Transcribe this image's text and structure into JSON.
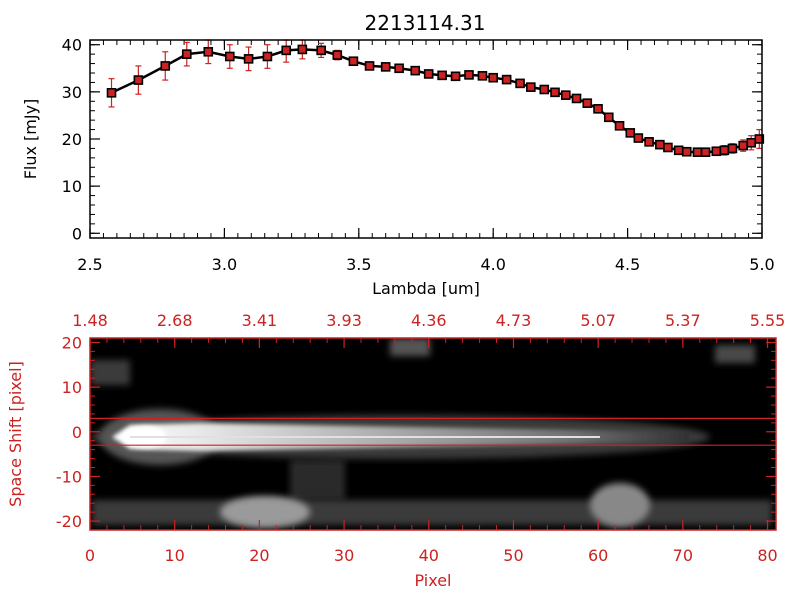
{
  "chart_data": [
    {
      "type": "line",
      "title": "2213114.31",
      "xlabel": "Lambda [um]",
      "ylabel": "Flux [mJy]",
      "xlim": [
        2.5,
        5.0
      ],
      "ylim": [
        -1,
        41
      ],
      "xticks": [
        "2.5",
        "3.0",
        "3.5",
        "4.0",
        "4.5",
        "5.0"
      ],
      "xtick_values": [
        2.5,
        3.0,
        3.5,
        4.0,
        4.5,
        5.0
      ],
      "yticks": [
        "0",
        "10",
        "20",
        "30",
        "40"
      ],
      "ytick_values": [
        0,
        10,
        20,
        30,
        40
      ],
      "grid": false,
      "line_color": "#000000",
      "marker_color": "#cc2222",
      "error_color": "#cc2222",
      "series": [
        {
          "x": [
            2.58,
            2.68,
            2.78,
            2.86,
            2.94,
            3.02,
            3.09,
            3.16,
            3.23,
            3.29,
            3.36,
            3.42,
            3.48,
            3.54,
            3.6,
            3.65,
            3.71,
            3.76,
            3.81,
            3.86,
            3.91,
            3.96,
            4.0,
            4.05,
            4.1,
            4.14,
            4.19,
            4.23,
            4.27,
            4.31,
            4.35,
            4.39,
            4.43,
            4.47,
            4.51,
            4.54,
            4.58,
            4.62,
            4.65,
            4.69,
            4.72,
            4.76,
            4.79,
            4.83,
            4.86,
            4.89,
            4.93,
            4.96,
            4.99
          ],
          "y": [
            29.8,
            32.5,
            35.5,
            38.0,
            38.5,
            37.5,
            37.0,
            37.5,
            38.8,
            39.0,
            38.8,
            37.8,
            36.5,
            35.5,
            35.3,
            35.0,
            34.5,
            33.8,
            33.5,
            33.3,
            33.6,
            33.4,
            33.0,
            32.6,
            31.8,
            31.0,
            30.5,
            29.9,
            29.3,
            28.6,
            27.6,
            26.4,
            24.6,
            22.8,
            21.3,
            20.2,
            19.4,
            18.8,
            18.2,
            17.6,
            17.3,
            17.2,
            17.2,
            17.4,
            17.6,
            18.0,
            18.6,
            19.2,
            20.0
          ],
          "err": [
            3.0,
            3.0,
            3.0,
            2.5,
            2.5,
            2.5,
            2.5,
            2.5,
            2.5,
            2.0,
            1.5,
            1.0,
            0.8,
            0.5,
            0.5,
            0.5,
            0.5,
            0.5,
            0.5,
            0.5,
            0.5,
            0.5,
            0.5,
            0.5,
            0.5,
            0.5,
            0.5,
            0.5,
            0.5,
            0.5,
            0.5,
            0.5,
            0.5,
            0.5,
            0.5,
            0.5,
            0.5,
            0.5,
            0.5,
            0.5,
            0.5,
            0.5,
            0.5,
            0.8,
            1.0,
            1.0,
            1.2,
            1.5,
            2.0
          ]
        }
      ]
    },
    {
      "type": "heatmap",
      "xlabel": "Pixel",
      "ylabel": "Space Shift [pixel]",
      "xlim": [
        0,
        81
      ],
      "ylim": [
        -22,
        21
      ],
      "xticks": [
        "0",
        "10",
        "20",
        "30",
        "40",
        "50",
        "60",
        "70",
        "80"
      ],
      "xtick_values": [
        0,
        10,
        20,
        30,
        40,
        50,
        60,
        70,
        80
      ],
      "yticks": [
        "-20",
        "-10",
        "0",
        "10",
        "20"
      ],
      "ytick_values": [
        -20,
        -10,
        0,
        10,
        20
      ],
      "top_axis_labels": [
        "1.48",
        "2.68",
        "3.41",
        "3.93",
        "4.36",
        "4.73",
        "5.07",
        "5.37",
        "5.55"
      ],
      "extraction_lines_y": [
        3,
        -3
      ],
      "axis_color": "#cc2222",
      "background": "#000000",
      "grid": false
    }
  ]
}
